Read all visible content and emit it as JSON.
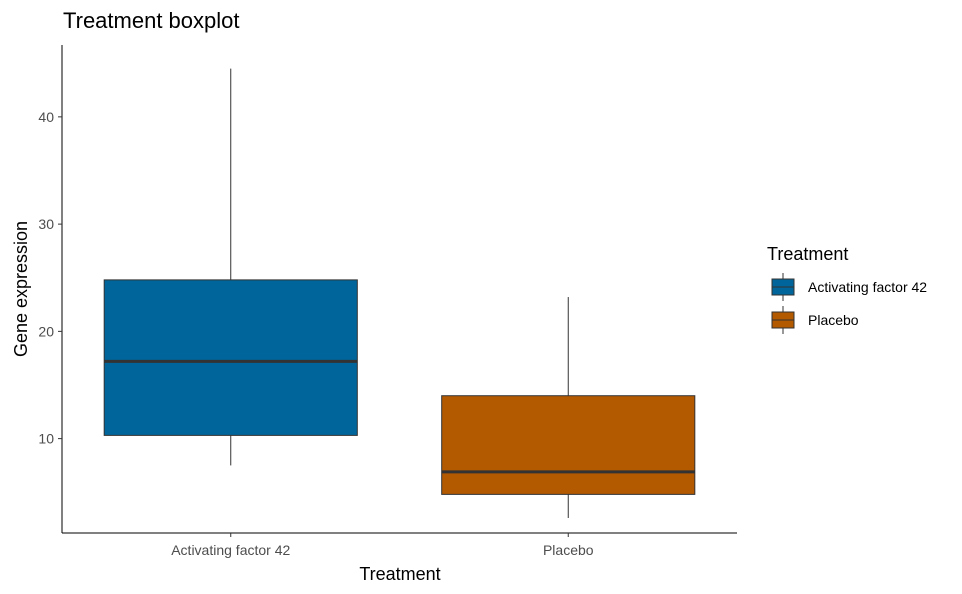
{
  "chart_data": {
    "type": "boxplot",
    "title": "Treatment boxplot",
    "xlabel": "Treatment",
    "ylabel": "Gene expression",
    "categories": [
      "Activating factor 42",
      "Placebo"
    ],
    "ylim": [
      1.2,
      46.7
    ],
    "yticks": [
      10,
      20,
      30,
      40
    ],
    "grid": false,
    "legend": {
      "title": "Treatment",
      "placement": "right",
      "entries": [
        "Activating factor 42",
        "Placebo"
      ]
    },
    "series": [
      {
        "name": "Activating factor 42",
        "color": "#00659a",
        "whisker_low": 7.5,
        "q1": 10.3,
        "median": 17.2,
        "q3": 24.8,
        "whisker_high": 44.5
      },
      {
        "name": "Placebo",
        "color": "#b35900",
        "whisker_low": 2.6,
        "q1": 4.8,
        "median": 6.9,
        "q3": 14.0,
        "whisker_high": 23.2
      }
    ]
  }
}
